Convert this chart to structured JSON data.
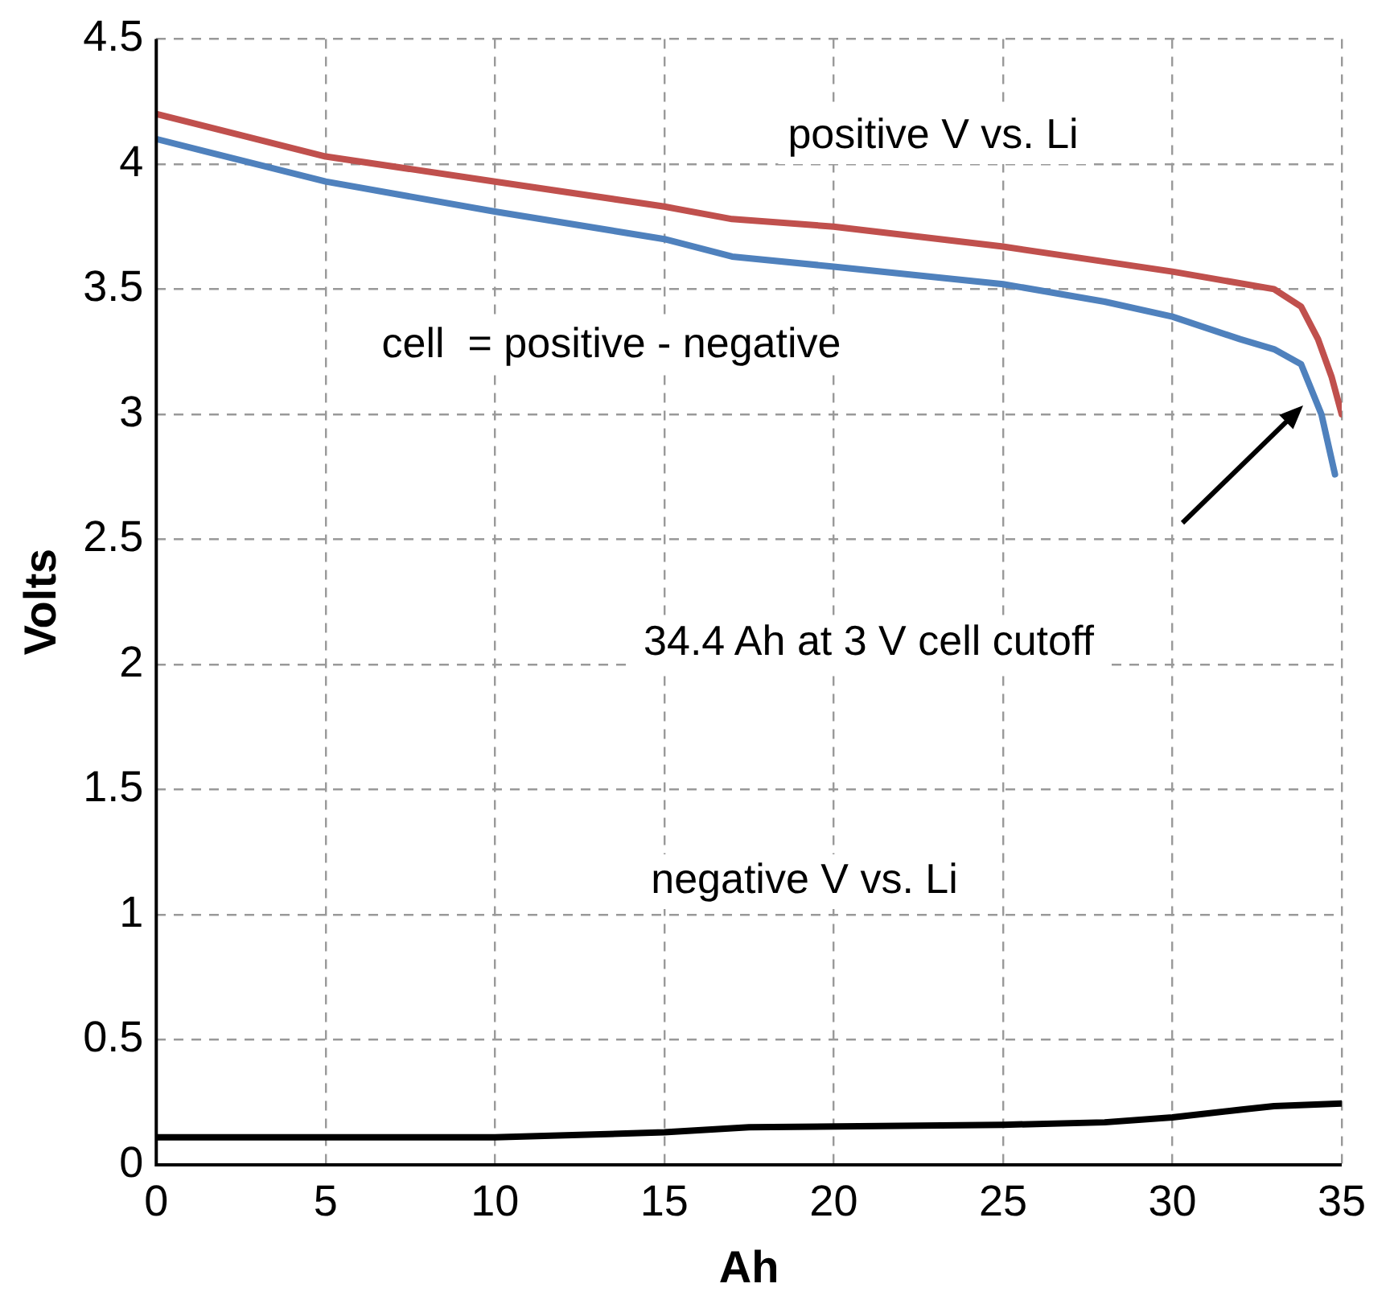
{
  "chart_data": {
    "type": "line",
    "xlabel": "Ah",
    "ylabel": "Volts",
    "xlim": [
      0,
      35
    ],
    "xticks": [
      0,
      5,
      10,
      15,
      20,
      25,
      30,
      35
    ],
    "ylim": [
      0,
      4.5
    ],
    "yticks": [
      0,
      0.5,
      1,
      1.5,
      2,
      2.5,
      3,
      3.5,
      4,
      4.5
    ],
    "grid": true,
    "legend": false,
    "marker": "none",
    "line_style": "solid",
    "series": [
      {
        "name": "positive V vs. Li",
        "color": "#c0504d",
        "x": [
          0,
          5,
          10,
          15,
          17,
          20,
          25,
          30,
          33,
          33.8,
          34.3,
          34.7,
          35
        ],
        "values": [
          4.2,
          4.03,
          3.93,
          3.83,
          3.78,
          3.75,
          3.67,
          3.57,
          3.5,
          3.43,
          3.3,
          3.15,
          3.0
        ]
      },
      {
        "name": "cell  = positive - negative",
        "color": "#4f81bd",
        "x": [
          0,
          5,
          10,
          15,
          17,
          20,
          25,
          28,
          30,
          32,
          33,
          33.8,
          34.4,
          34.8
        ],
        "values": [
          4.1,
          3.93,
          3.81,
          3.7,
          3.63,
          3.59,
          3.52,
          3.45,
          3.39,
          3.3,
          3.26,
          3.2,
          3.0,
          2.76
        ]
      },
      {
        "color": "#000000",
        "x": [
          0,
          10,
          15,
          17.5,
          25,
          28,
          30,
          32,
          33,
          35
        ],
        "values": [
          0.11,
          0.11,
          0.13,
          0.15,
          0.16,
          0.17,
          0.19,
          0.22,
          0.235,
          0.245
        ]
      }
    ],
    "annotations": [
      "34.4 Ah at 3 V cell cutoff",
      "negative V vs. Li"
    ]
  }
}
